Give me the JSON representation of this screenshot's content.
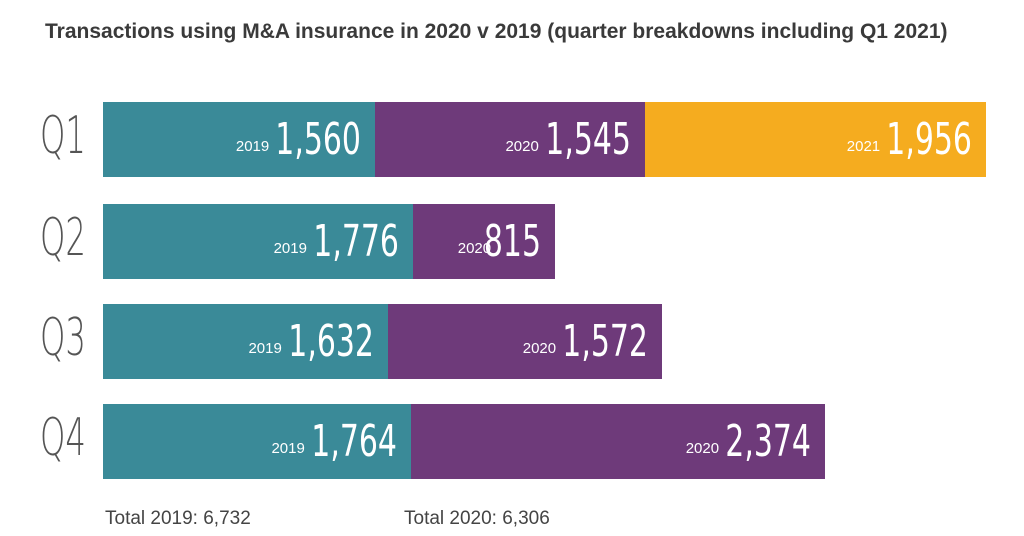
{
  "title": "Transactions using M&A insurance in 2020 v 2019 (quarter breakdowns including Q1 2021)",
  "colors": {
    "2019": "#3a8a98",
    "2020": "#6e3a7a",
    "2021": "#f5ac1f"
  },
  "chart_data": {
    "type": "bar",
    "orientation": "horizontal",
    "stacked": true,
    "title": "Transactions using M&A insurance in 2020 v 2019 (quarter breakdowns including Q1 2021)",
    "categories": [
      "Q1",
      "Q2",
      "Q3",
      "Q4"
    ],
    "series": [
      {
        "name": "2019",
        "values": [
          1560,
          1776,
          1632,
          1764
        ],
        "labels": [
          "1,560",
          "1,776",
          "1,632",
          "1,764"
        ]
      },
      {
        "name": "2020",
        "values": [
          1545,
          815,
          1572,
          2374
        ],
        "labels": [
          "1,545",
          "815",
          "1,572",
          "2,374"
        ]
      },
      {
        "name": "2021",
        "values": [
          1956,
          null,
          null,
          null
        ],
        "labels": [
          "1,956",
          null,
          null,
          null
        ]
      }
    ],
    "grid": false
  },
  "totals": [
    "Total 2019: 6,732",
    "Total 2020: 6,306"
  ]
}
